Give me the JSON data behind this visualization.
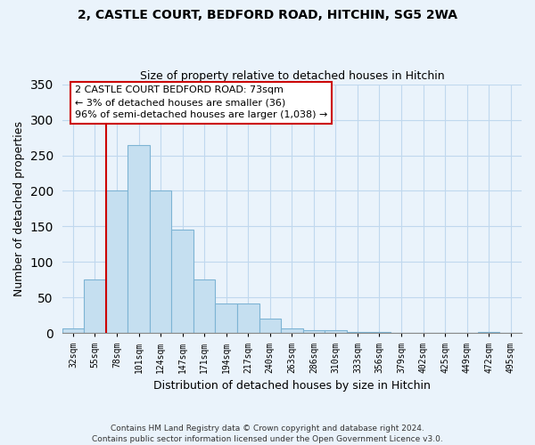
{
  "title": "2, CASTLE COURT, BEDFORD ROAD, HITCHIN, SG5 2WA",
  "subtitle": "Size of property relative to detached houses in Hitchin",
  "xlabel": "Distribution of detached houses by size in Hitchin",
  "ylabel": "Number of detached properties",
  "bar_labels": [
    "32sqm",
    "55sqm",
    "78sqm",
    "101sqm",
    "124sqm",
    "147sqm",
    "171sqm",
    "194sqm",
    "217sqm",
    "240sqm",
    "263sqm",
    "286sqm",
    "310sqm",
    "333sqm",
    "356sqm",
    "379sqm",
    "402sqm",
    "425sqm",
    "449sqm",
    "472sqm",
    "495sqm"
  ],
  "bar_heights": [
    7,
    75,
    200,
    265,
    200,
    145,
    75,
    42,
    42,
    20,
    7,
    4,
    4,
    2,
    2,
    0,
    0,
    0,
    0,
    2,
    0
  ],
  "bar_color": "#c5dff0",
  "bar_edge_color": "#7db4d4",
  "vline_color": "#cc0000",
  "annotation_text": "2 CASTLE COURT BEDFORD ROAD: 73sqm\n← 3% of detached houses are smaller (36)\n96% of semi-detached houses are larger (1,038) →",
  "ylim": [
    0,
    350
  ],
  "yticks": [
    0,
    50,
    100,
    150,
    200,
    250,
    300,
    350
  ],
  "footer": "Contains HM Land Registry data © Crown copyright and database right 2024.\nContains public sector information licensed under the Open Government Licence v3.0.",
  "bg_color": "#eaf3fb",
  "grid_color": "#c0d8ee"
}
